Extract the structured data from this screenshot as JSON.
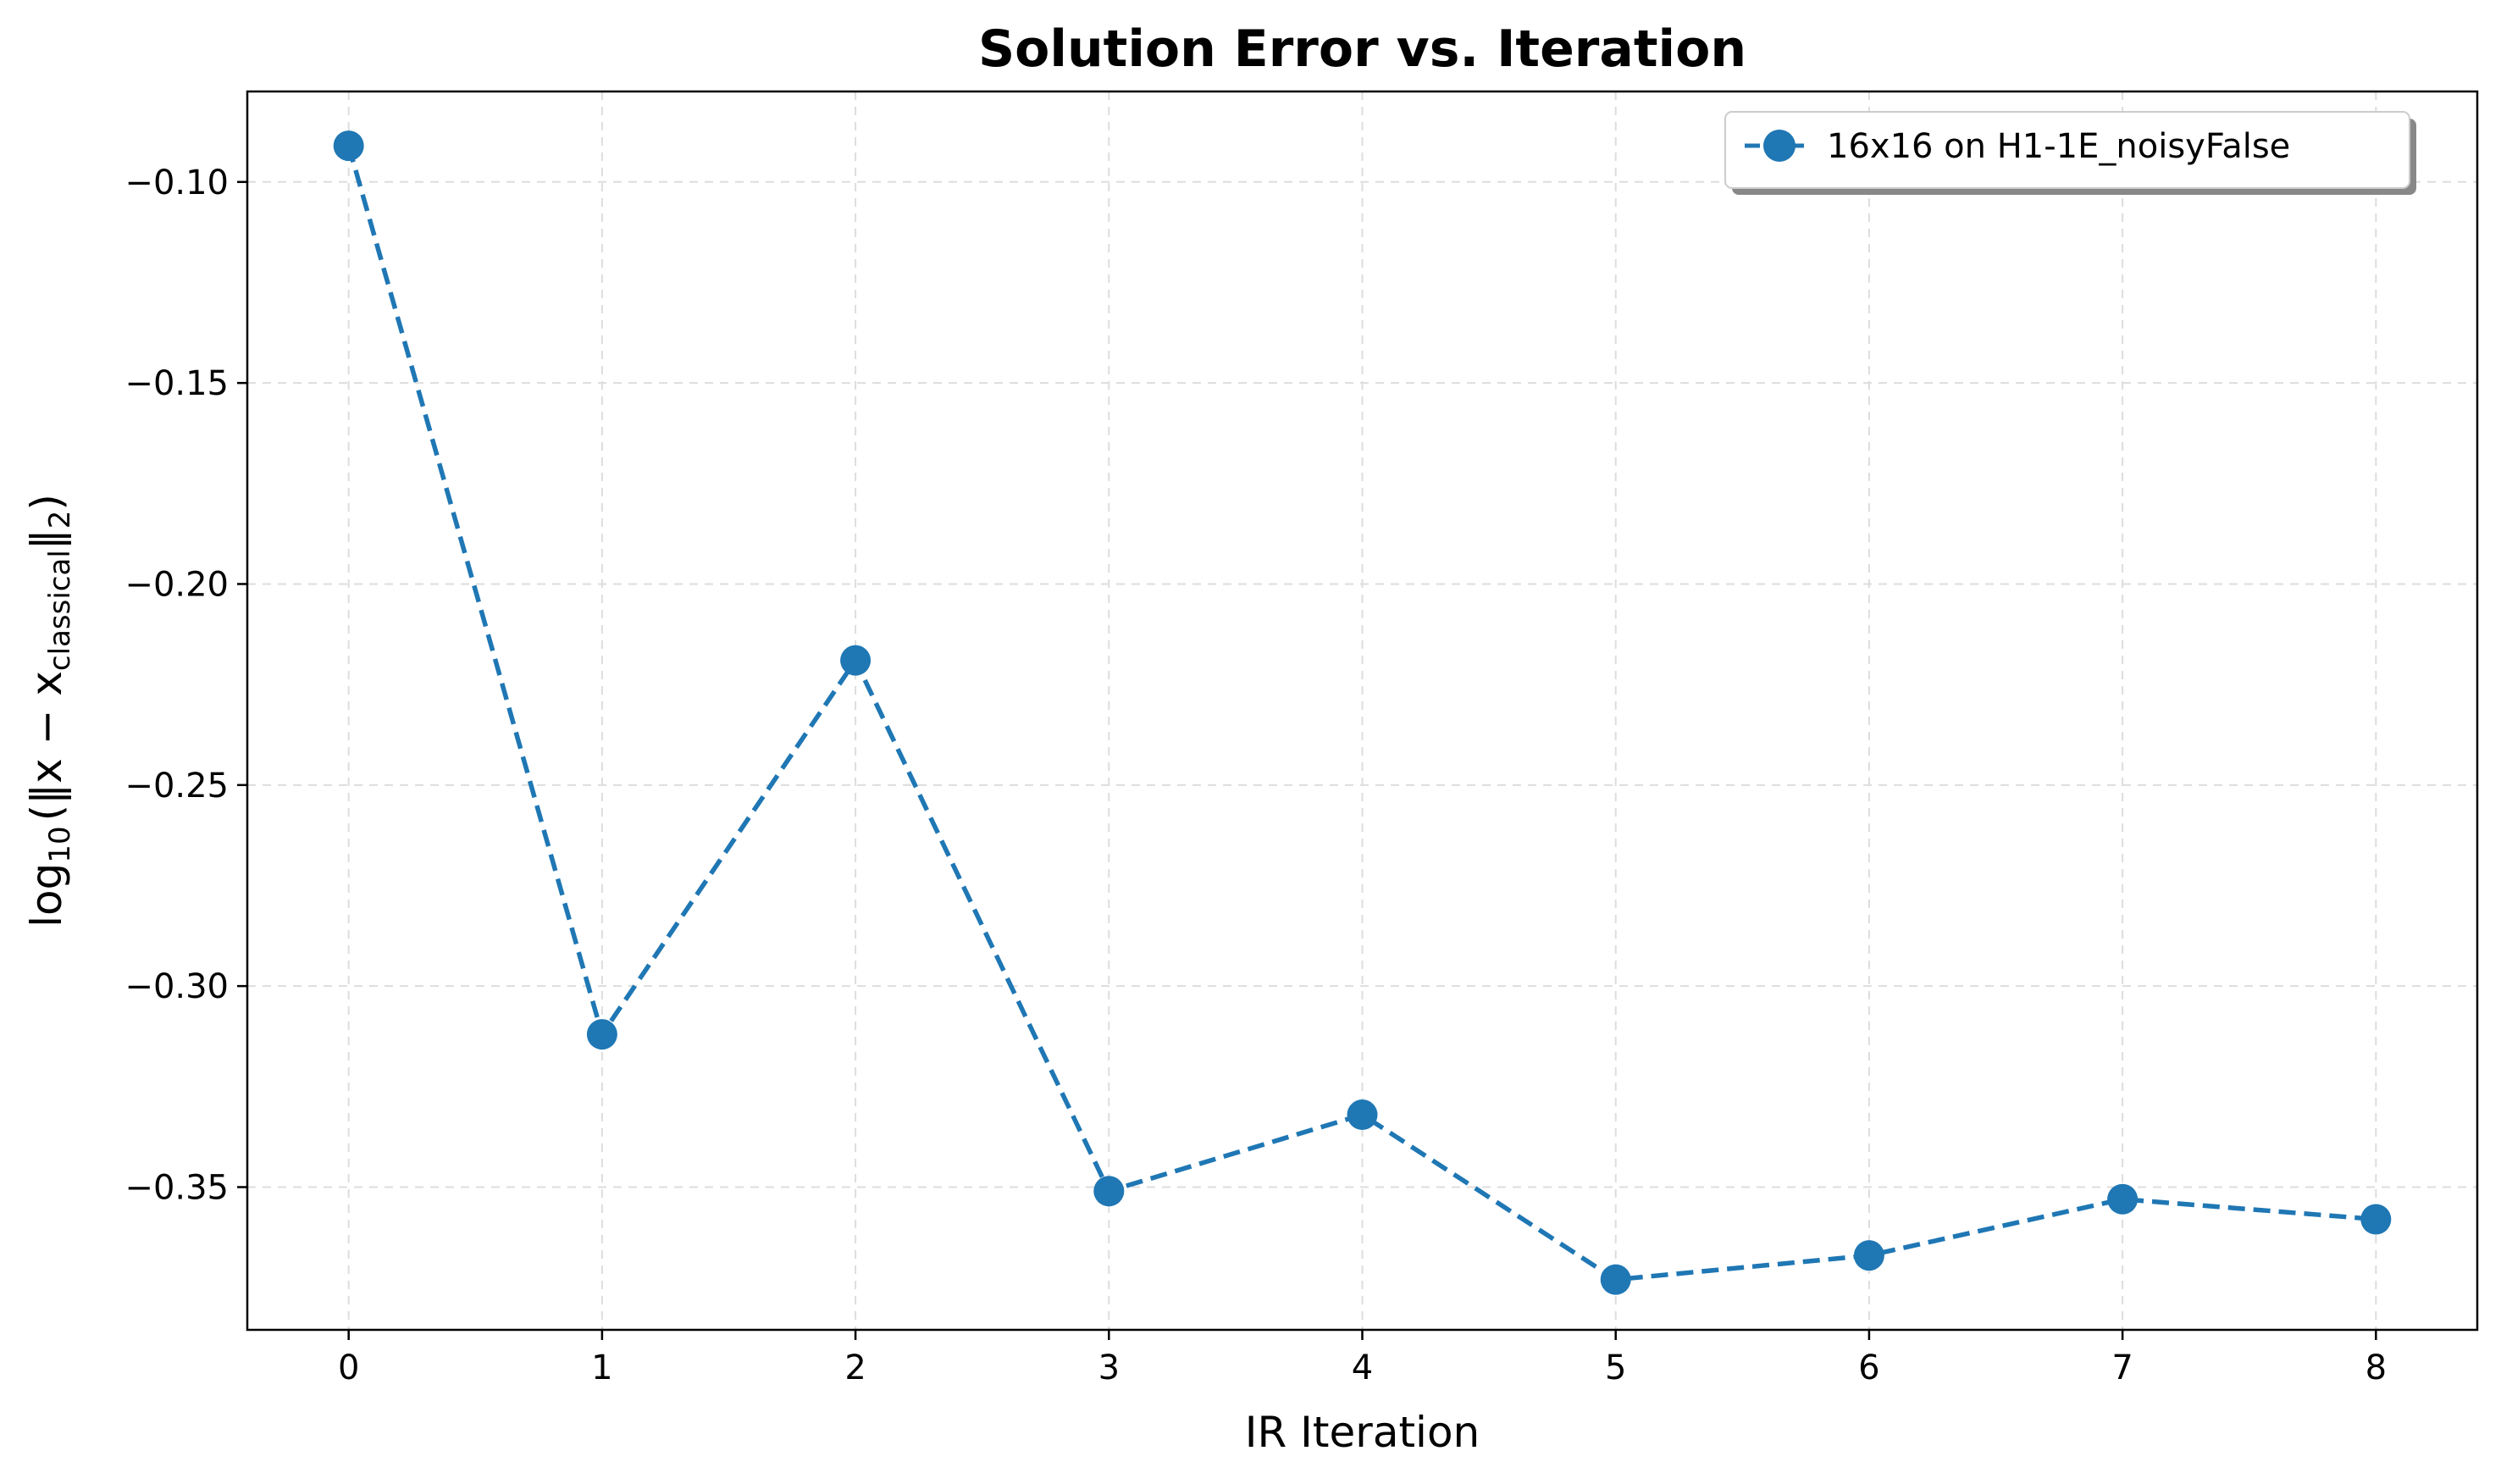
{
  "chart_data": {
    "type": "line",
    "title": "Solution Error vs. Iteration",
    "xlabel": "IR Iteration",
    "ylabel": {
      "prefix": "log",
      "prefix_sub": "10",
      "open": "(‖x − x",
      "x_sub": "classical",
      "close": "‖",
      "norm_sub": "2",
      "end": ")"
    },
    "x": [
      0,
      1,
      2,
      3,
      4,
      5,
      6,
      7,
      8
    ],
    "series": [
      {
        "name": "16x16 on H1-1E_noisyFalse",
        "values": [
          -0.091,
          -0.312,
          -0.219,
          -0.351,
          -0.332,
          -0.373,
          -0.367,
          -0.353,
          -0.358
        ],
        "color": "#1f77b4",
        "line_style": "dashed",
        "marker": "circle"
      }
    ],
    "xlim": [
      -0.4,
      8.4
    ],
    "ylim": [
      -0.3855,
      -0.0775
    ],
    "xticks": [
      "0",
      "1",
      "2",
      "3",
      "4",
      "5",
      "6",
      "7",
      "8"
    ],
    "yticks": [
      {
        "value": -0.1,
        "label": "−0.10"
      },
      {
        "value": -0.15,
        "label": "−0.15"
      },
      {
        "value": -0.2,
        "label": "−0.20"
      },
      {
        "value": -0.25,
        "label": "−0.25"
      },
      {
        "value": -0.3,
        "label": "−0.30"
      },
      {
        "value": -0.35,
        "label": "−0.35"
      }
    ],
    "grid": true,
    "legend_position": "top-right"
  }
}
